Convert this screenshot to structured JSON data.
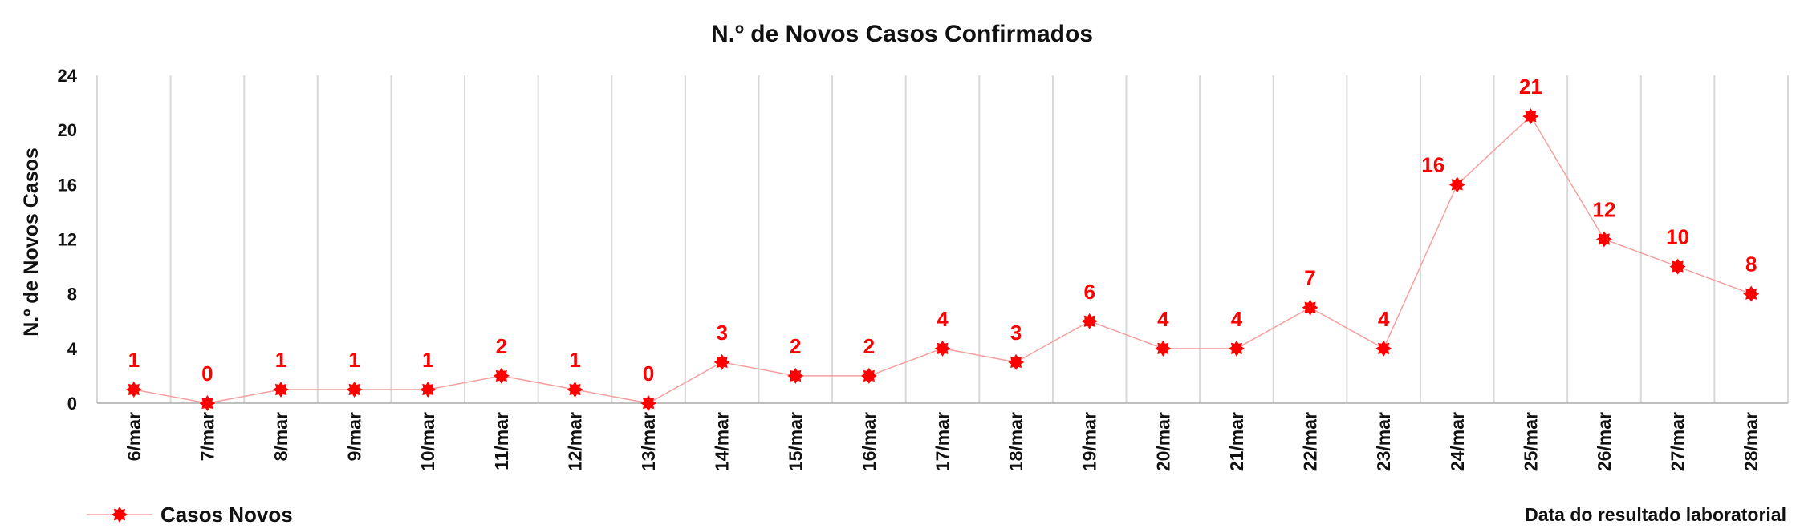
{
  "chart_data": {
    "type": "line",
    "title": "N.º de Novos Casos Confirmados",
    "ylabel": "N.º de Novos Casos",
    "xlabel": "Data do resultado laboratorial",
    "ylim": [
      0,
      24
    ],
    "yticks": [
      0,
      4,
      8,
      12,
      16,
      20,
      24
    ],
    "grid": "vertical",
    "legend_position": "bottom-left",
    "colors": {
      "series": "#ff0000",
      "line": "#f4a0a0",
      "grid": "#d9d9d9",
      "axis": "#bfbfbf"
    },
    "categories": [
      "6/mar",
      "7/mar",
      "8/mar",
      "9/mar",
      "10/mar",
      "11/mar",
      "12/mar",
      "13/mar",
      "14/mar",
      "15/mar",
      "16/mar",
      "17/mar",
      "18/mar",
      "19/mar",
      "20/mar",
      "21/mar",
      "22/mar",
      "23/mar",
      "24/mar",
      "25/mar",
      "26/mar",
      "27/mar",
      "28/mar"
    ],
    "series": [
      {
        "name": "Casos Novos",
        "values": [
          1,
          0,
          1,
          1,
          1,
          2,
          1,
          0,
          3,
          2,
          2,
          4,
          3,
          6,
          4,
          4,
          7,
          4,
          16,
          21,
          12,
          10,
          8
        ]
      }
    ]
  }
}
